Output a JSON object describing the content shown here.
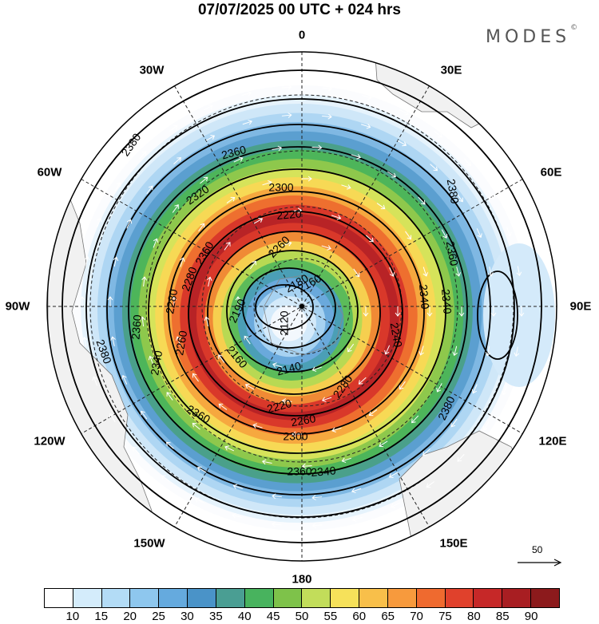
{
  "title": "07/07/2025  00 UTC  + 024 hrs",
  "brand": "MODES",
  "brand_mark": "©",
  "longitude_labels": {
    "n0": "0",
    "n30e": "30E",
    "n60e": "60E",
    "n90e": "90E",
    "n120e": "120E",
    "n150e": "150E",
    "n180": "180",
    "n150w": "150W",
    "n120w": "120W",
    "n90w": "90W",
    "n60w": "60W",
    "n30w": "30W"
  },
  "contour_labels": [
    "2380",
    "2360",
    "2320",
    "2300",
    "2220",
    "2380",
    "2360",
    "2360",
    "2280",
    "2260",
    "2180",
    "2160",
    "2280",
    "2190",
    "2120",
    "2340",
    "2240",
    "2340",
    "2360",
    "2260",
    "2140",
    "2160",
    "2340",
    "2280",
    "2220",
    "2260",
    "2300",
    "2380",
    "2380",
    "2360",
    "2340",
    "2360"
  ],
  "colorbar": {
    "colors": [
      "#ffffff",
      "#d4ecfb",
      "#b3dcf6",
      "#8ec7ee",
      "#65aade",
      "#4a93c8",
      "#4a9e93",
      "#48b35e",
      "#7ec24a",
      "#c2dd5a",
      "#f6e15a",
      "#f8bf4a",
      "#f79a3d",
      "#ef6a2f",
      "#e0412c",
      "#c62828",
      "#a81e22",
      "#8c1a1c"
    ],
    "ticks": [
      "10",
      "15",
      "20",
      "25",
      "30",
      "35",
      "40",
      "45",
      "50",
      "55",
      "60",
      "65",
      "70",
      "75",
      "80",
      "85",
      "90"
    ]
  },
  "vector_reference": "50",
  "ring_colors": [
    "#fbfcfe",
    "#e6f3fc",
    "#cfe7f8",
    "#aed6f3",
    "#7fb8e3",
    "#5b9fd0",
    "#4aa08a",
    "#4db55a",
    "#8ec84c",
    "#d6e35a",
    "#f7d955",
    "#f6a83f",
    "#ee6f2f",
    "#d9382a",
    "#b82326",
    "#d9382a",
    "#f08a35",
    "#f6cf4f",
    "#b8d953",
    "#5cbb5a",
    "#4b9fb6",
    "#6aa9dc",
    "#a7d2f1",
    "#d4eafa",
    "#f3f8fd"
  ]
}
